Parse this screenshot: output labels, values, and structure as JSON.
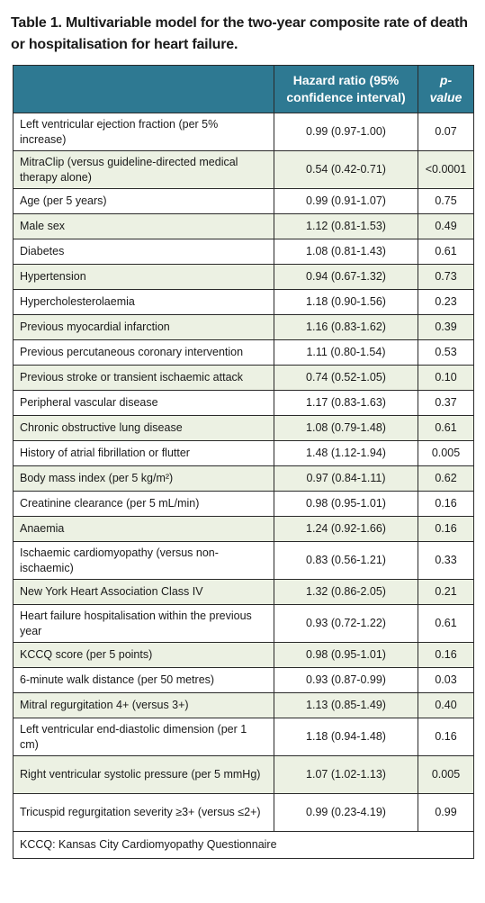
{
  "caption": "Table 1. Multivariable model for the two-year composite rate of death or hospitalisation for heart failure.",
  "headers": {
    "variable": "",
    "hr": "Hazard ratio (95% confidence interval)",
    "p": "p-value"
  },
  "rows": [
    {
      "label": "Left ventricular ejection fraction (per 5% increase)",
      "hr": "0.99 (0.97-1.00)",
      "p": "0.07"
    },
    {
      "label": "MitraClip (versus guideline-directed medical therapy alone)",
      "hr": "0.54 (0.42-0.71)",
      "p": "<0.0001"
    },
    {
      "label": "Age (per 5 years)",
      "hr": "0.99 (0.91-1.07)",
      "p": "0.75"
    },
    {
      "label": "Male sex",
      "hr": "1.12 (0.81-1.53)",
      "p": "0.49"
    },
    {
      "label": "Diabetes",
      "hr": "1.08 (0.81-1.43)",
      "p": "0.61"
    },
    {
      "label": "Hypertension",
      "hr": "0.94 (0.67-1.32)",
      "p": "0.73"
    },
    {
      "label": "Hypercholesterolaemia",
      "hr": "1.18 (0.90-1.56)",
      "p": "0.23"
    },
    {
      "label": "Previous myocardial infarction",
      "hr": "1.16 (0.83-1.62)",
      "p": "0.39"
    },
    {
      "label": "Previous percutaneous coronary intervention",
      "hr": "1.11 (0.80-1.54)",
      "p": "0.53"
    },
    {
      "label": "Previous stroke or transient ischaemic attack",
      "hr": "0.74 (0.52-1.05)",
      "p": "0.10"
    },
    {
      "label": "Peripheral vascular disease",
      "hr": "1.17 (0.83-1.63)",
      "p": "0.37"
    },
    {
      "label": "Chronic obstructive lung disease",
      "hr": "1.08 (0.79-1.48)",
      "p": "0.61"
    },
    {
      "label": "History of atrial fibrillation or flutter",
      "hr": "1.48 (1.12-1.94)",
      "p": "0.005"
    },
    {
      "label": "Body mass index (per 5 kg/m²)",
      "hr": "0.97 (0.84-1.11)",
      "p": "0.62"
    },
    {
      "label": "Creatinine clearance (per 5 mL/min)",
      "hr": "0.98 (0.95-1.01)",
      "p": "0.16"
    },
    {
      "label": "Anaemia",
      "hr": "1.24 (0.92-1.66)",
      "p": "0.16"
    },
    {
      "label": "Ischaemic cardiomyopathy (versus non-ischaemic)",
      "hr": "0.83 (0.56-1.21)",
      "p": "0.33"
    },
    {
      "label": "New York Heart Association Class IV",
      "hr": "1.32 (0.86-2.05)",
      "p": "0.21"
    },
    {
      "label": "Heart failure hospitalisation within the previous year",
      "hr": "0.93 (0.72-1.22)",
      "p": "0.61"
    },
    {
      "label": "KCCQ score (per 5 points)",
      "hr": "0.98 (0.95-1.01)",
      "p": "0.16"
    },
    {
      "label": "6-minute walk distance (per 50 metres)",
      "hr": "0.93 (0.87-0.99)",
      "p": "0.03"
    },
    {
      "label": "Mitral regurgitation 4+ (versus 3+)",
      "hr": "1.13 (0.85-1.49)",
      "p": "0.40"
    },
    {
      "label": "Left ventricular end-diastolic dimension (per 1 cm)",
      "hr": "1.18 (0.94-1.48)",
      "p": "0.16"
    },
    {
      "label": "Right ventricular systolic pressure (per 5 mmHg)",
      "hr": "1.07 (1.02-1.13)",
      "p": "0.005"
    },
    {
      "label": "Tricuspid regurgitation severity ≥3+ (versus ≤2+)",
      "hr": "0.99 (0.23-4.19)",
      "p": "0.99"
    }
  ],
  "footnote": "KCCQ: Kansas City Cardiomyopathy Questionnaire",
  "colors": {
    "header_bg": "#2e7992",
    "header_text": "#ffffff",
    "stripe_bg": "#ecf1e3",
    "border": "#2a2a2a"
  }
}
